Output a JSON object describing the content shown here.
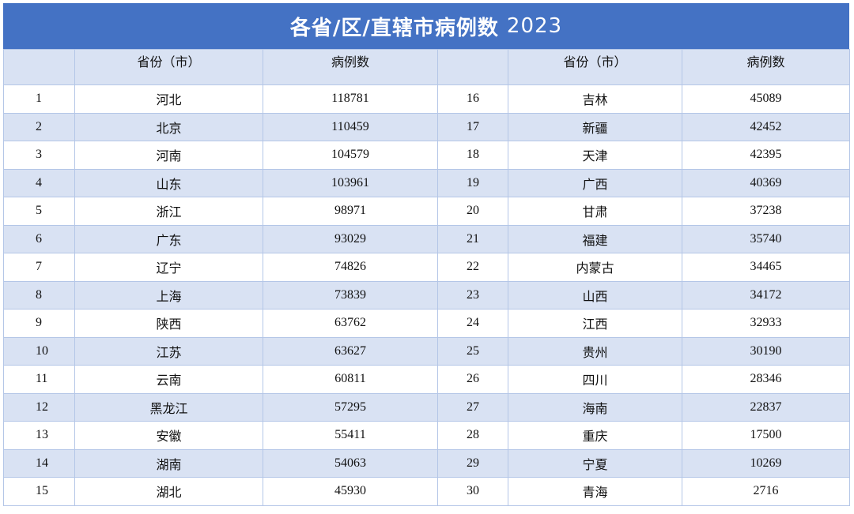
{
  "title": {
    "main": "各省/区/直辖市病例数",
    "year": "2023"
  },
  "headers": {
    "col1": "",
    "col2": "省份（市）",
    "col3": "病例数",
    "col4": "",
    "col5": "省份（市）",
    "col6": "病例数"
  },
  "rows": [
    {
      "r1": "1",
      "n1": "河北",
      "v1": "118781",
      "r2": "16",
      "n2": "吉林",
      "v2": "45089"
    },
    {
      "r1": "2",
      "n1": "北京",
      "v1": "110459",
      "r2": "17",
      "n2": "新疆",
      "v2": "42452"
    },
    {
      "r1": "3",
      "n1": "河南",
      "v1": "104579",
      "r2": "18",
      "n2": "天津",
      "v2": "42395"
    },
    {
      "r1": "4",
      "n1": "山东",
      "v1": "103961",
      "r2": "19",
      "n2": "广西",
      "v2": "40369"
    },
    {
      "r1": "5",
      "n1": "浙江",
      "v1": "98971",
      "r2": "20",
      "n2": "甘肃",
      "v2": "37238"
    },
    {
      "r1": "6",
      "n1": "广东",
      "v1": "93029",
      "r2": "21",
      "n2": "福建",
      "v2": "35740"
    },
    {
      "r1": "7",
      "n1": "辽宁",
      "v1": "74826",
      "r2": "22",
      "n2": "内蒙古",
      "v2": "34465"
    },
    {
      "r1": "8",
      "n1": "上海",
      "v1": "73839",
      "r2": "23",
      "n2": "山西",
      "v2": "34172"
    },
    {
      "r1": "9",
      "n1": "陕西",
      "v1": "63762",
      "r2": "24",
      "n2": "江西",
      "v2": "32933"
    },
    {
      "r1": "10",
      "n1": "江苏",
      "v1": "63627",
      "r2": "25",
      "n2": "贵州",
      "v2": "30190"
    },
    {
      "r1": "11",
      "n1": "云南",
      "v1": "60811",
      "r2": "26",
      "n2": "四川",
      "v2": "28346"
    },
    {
      "r1": "12",
      "n1": "黑龙江",
      "v1": "57295",
      "r2": "27",
      "n2": "海南",
      "v2": "22837"
    },
    {
      "r1": "13",
      "n1": "安徽",
      "v1": "55411",
      "r2": "28",
      "n2": "重庆",
      "v2": "17500"
    },
    {
      "r1": "14",
      "n1": "湖南",
      "v1": "54063",
      "r2": "29",
      "n2": "宁夏",
      "v2": "10269"
    },
    {
      "r1": "15",
      "n1": "湖北",
      "v1": "45930",
      "r2": "30",
      "n2": "青海",
      "v2": "2716"
    }
  ],
  "colors": {
    "header_bar": "#4472c4",
    "band": "#d9e2f3",
    "border": "#b4c6e7"
  }
}
